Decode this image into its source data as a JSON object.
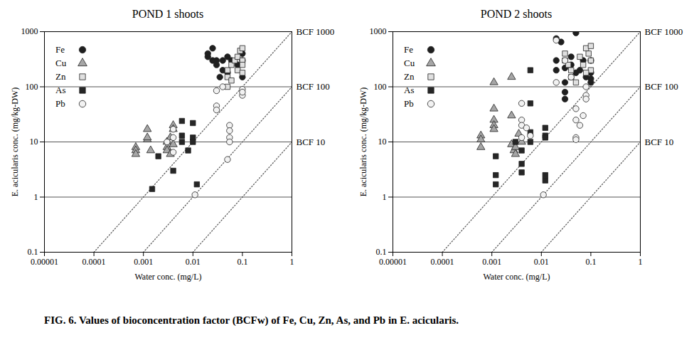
{
  "caption": "FIG. 6. Values of bioconcentration factor (BCFw) of Fe, Cu, Zn, As, and Pb in E. acicularis.",
  "chart_data": [
    {
      "type": "scatter",
      "title": "POND 1 shoots",
      "x_label": "Water conc. (mg/L)",
      "y_label": "E. acicularis conc. (mg/kg-DW)",
      "log": true,
      "grid": "y",
      "legend": "upper left",
      "xlim": [
        1e-05,
        1
      ],
      "ylim": [
        0.1,
        1000
      ],
      "xticks": [
        1e-05,
        0.0001,
        0.001,
        0.01,
        0.1,
        1
      ],
      "yticks": [
        0.1,
        1,
        10,
        100,
        1000
      ],
      "reference_lines": [
        {
          "label": "BCF 1000",
          "value": 1000
        },
        {
          "label": "BCF 100",
          "value": 100
        },
        {
          "label": "BCF 10",
          "value": 10
        }
      ],
      "series": [
        {
          "name": "Fe",
          "color": "#1f1f1f",
          "marker": "circle",
          "x": [
            0.02,
            0.02,
            0.025,
            0.025,
            0.03,
            0.03,
            0.035,
            0.04,
            0.04,
            0.05,
            0.05,
            0.06,
            0.08,
            0.1,
            0.1,
            0.1
          ],
          "values": [
            400,
            350,
            300,
            500,
            300,
            250,
            150,
            300,
            200,
            180,
            350,
            300,
            250,
            300,
            150,
            400
          ]
        },
        {
          "name": "Cu",
          "color": "#a6a6a6",
          "marker": "triangle",
          "x": [
            0.0007,
            0.0007,
            0.0007,
            0.0012,
            0.0012,
            0.0012,
            0.0014,
            0.003,
            0.003,
            0.003,
            0.0035,
            0.0035,
            0.004,
            0.004,
            0.004
          ],
          "values": [
            8,
            7,
            6,
            17,
            11,
            12,
            7,
            10,
            8,
            7,
            6,
            12,
            9,
            20,
            17
          ]
        },
        {
          "name": "Zn",
          "color": "#e0e0e0",
          "marker": "square",
          "x": [
            0.05,
            0.05,
            0.06,
            0.06,
            0.07,
            0.08,
            0.08,
            0.09,
            0.1,
            0.1,
            0.1,
            0.1,
            0.05
          ],
          "values": [
            200,
            150,
            250,
            130,
            300,
            350,
            200,
            450,
            500,
            300,
            250,
            180,
            100
          ]
        },
        {
          "name": "As",
          "color": "#262626",
          "marker": "square",
          "x": [
            0.0015,
            0.002,
            0.004,
            0.006,
            0.006,
            0.006,
            0.01,
            0.01,
            0.01,
            0.012,
            0.008
          ],
          "values": [
            1.4,
            5.5,
            3,
            24,
            13,
            10,
            22,
            12,
            10,
            1.7,
            7
          ]
        },
        {
          "name": "Pb",
          "color": "#f2f2f2",
          "marker": "circle",
          "x": [
            0.003,
            0.004,
            0.004,
            0.004,
            0.011,
            0.03,
            0.03,
            0.03,
            0.04,
            0.05,
            0.055,
            0.055,
            0.055,
            0.055,
            0.1,
            0.1,
            0.1
          ],
          "values": [
            10,
            12,
            17,
            6.5,
            1.1,
            45,
            38,
            85,
            100,
            4.8,
            20,
            16,
            12,
            10,
            90,
            70,
            80
          ]
        }
      ]
    },
    {
      "type": "scatter",
      "title": "POND 2 shoots",
      "x_label": "Water conc. (mg/L)",
      "y_label": "E. acicularis conc. (mg/kg-DW)",
      "log": true,
      "grid": "y",
      "legend": "upper left",
      "xlim": [
        1e-05,
        1
      ],
      "ylim": [
        0.1,
        1000
      ],
      "xticks": [
        1e-05,
        0.0001,
        0.001,
        0.01,
        0.1,
        1
      ],
      "yticks": [
        0.1,
        1,
        10,
        100,
        1000
      ],
      "reference_lines": [
        {
          "label": "BCF 1000",
          "value": 1000
        },
        {
          "label": "BCF 100",
          "value": 100
        },
        {
          "label": "BCF 10",
          "value": 10
        }
      ],
      "series": [
        {
          "name": "Fe",
          "color": "#1f1f1f",
          "marker": "circle",
          "x": [
            0.02,
            0.025,
            0.02,
            0.02,
            0.03,
            0.03,
            0.03,
            0.03,
            0.04,
            0.04,
            0.05,
            0.05,
            0.06,
            0.07,
            0.08,
            0.1,
            0.1,
            0.1,
            0.1
          ],
          "values": [
            750,
            650,
            300,
            200,
            220,
            120,
            80,
            60,
            350,
            250,
            950,
            180,
            200,
            300,
            150,
            180,
            300,
            120,
            140
          ]
        },
        {
          "name": "Cu",
          "color": "#a6a6a6",
          "marker": "triangle",
          "x": [
            0.0006,
            0.0006,
            0.0006,
            0.0011,
            0.0011,
            0.0011,
            0.0011,
            0.0011,
            0.0025,
            0.0025,
            0.0025,
            0.0028,
            0.003,
            0.003,
            0.0035,
            0.004
          ],
          "values": [
            13,
            11,
            8,
            120,
            40,
            25,
            20,
            17,
            150,
            30,
            9,
            7,
            6,
            8,
            14,
            10
          ]
        },
        {
          "name": "Zn",
          "color": "#e0e0e0",
          "marker": "square",
          "x": [
            0.03,
            0.03,
            0.035,
            0.04,
            0.04,
            0.05,
            0.06,
            0.07,
            0.08,
            0.09,
            0.1,
            0.1,
            0.1,
            0.08
          ],
          "values": [
            400,
            300,
            250,
            200,
            150,
            120,
            350,
            250,
            500,
            400,
            550,
            300,
            200,
            180
          ]
        },
        {
          "name": "As",
          "color": "#262626",
          "marker": "square",
          "x": [
            0.0012,
            0.0012,
            0.0012,
            0.003,
            0.004,
            0.004,
            0.004,
            0.006,
            0.006,
            0.006,
            0.006,
            0.012,
            0.012,
            0.012,
            0.012,
            0.012
          ],
          "values": [
            5.5,
            2.5,
            1.7,
            10,
            4,
            2.8,
            7,
            200,
            50,
            15,
            10,
            18,
            13,
            12,
            2.5,
            2
          ]
        },
        {
          "name": "Pb",
          "color": "#f2f2f2",
          "marker": "circle",
          "x": [
            0.004,
            0.004,
            0.004,
            0.004,
            0.005,
            0.006,
            0.011,
            0.02,
            0.02,
            0.03,
            0.04,
            0.05,
            0.05,
            0.05,
            0.05,
            0.06,
            0.07,
            0.08,
            0.08,
            0.08
          ],
          "values": [
            50,
            25,
            20,
            12,
            18,
            13,
            1.1,
            700,
            120,
            300,
            150,
            40,
            25,
            12,
            11,
            20,
            30,
            100,
            70,
            60
          ]
        }
      ]
    }
  ]
}
